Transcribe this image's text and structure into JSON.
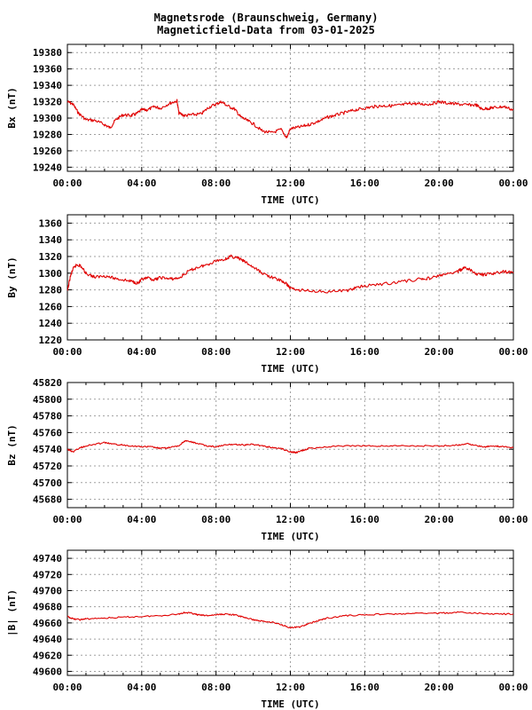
{
  "title": "Magnetsrode (Braunschweig, Germany)",
  "subtitle": "Magneticfield-Data from 03-01-2025",
  "colors": {
    "series": "#e00000",
    "grid": "#a0a0a0",
    "axis": "#000000"
  },
  "chart_data": [
    {
      "type": "line",
      "ylabel": "Bx (nT)",
      "xlabel": "TIME (UTC)",
      "x_ticks": [
        "00:00",
        "04:00",
        "08:00",
        "12:00",
        "16:00",
        "20:00",
        "00:00"
      ],
      "xlim": [
        0,
        24
      ],
      "ylim": [
        19235,
        19390
      ],
      "y_ticks": [
        19240,
        19260,
        19280,
        19300,
        19320,
        19340,
        19360,
        19380
      ],
      "grid": true,
      "series": [
        {
          "x": [
            0,
            0.3,
            0.6,
            1.0,
            1.5,
            2.0,
            2.3,
            2.6,
            3.0,
            3.4,
            3.7,
            4.0,
            4.3,
            4.7,
            5.0,
            5.5,
            5.9,
            6.0,
            6.3,
            6.7,
            7.2,
            7.6,
            8.0,
            8.3,
            8.6,
            9.0,
            9.3,
            9.6,
            10.0,
            10.5,
            11.0,
            11.5,
            11.8,
            12.0,
            12.5,
            13.0,
            13.5,
            14.0,
            14.5,
            15.0,
            15.5,
            16.0,
            16.5,
            17.0,
            17.5,
            18.0,
            18.5,
            19.0,
            19.5,
            20.0,
            20.5,
            21.0,
            21.5,
            22.0,
            22.3,
            22.7,
            23.0,
            23.5,
            24.0
          ],
          "y": [
            19320,
            19317,
            19306,
            19298,
            19297,
            19292,
            19288,
            19298,
            19304,
            19303,
            19305,
            19310,
            19310,
            19314,
            19312,
            19318,
            19321,
            19306,
            19303,
            19304,
            19305,
            19313,
            19317,
            19320,
            19315,
            19311,
            19302,
            19298,
            19293,
            19284,
            19282,
            19286,
            19276,
            19287,
            19289,
            19292,
            19296,
            19301,
            19304,
            19307,
            19310,
            19312,
            19314,
            19315,
            19315,
            19316,
            19318,
            19317,
            19317,
            19320,
            19318,
            19317,
            19316,
            19316,
            19311,
            19312,
            19313,
            19314,
            19310
          ]
        }
      ]
    },
    {
      "type": "line",
      "ylabel": "By (nT)",
      "xlabel": "TIME (UTC)",
      "x_ticks": [
        "00:00",
        "04:00",
        "08:00",
        "12:00",
        "16:00",
        "20:00",
        "00:00"
      ],
      "xlim": [
        0,
        24
      ],
      "ylim": [
        1220,
        1370
      ],
      "y_ticks": [
        1220,
        1240,
        1260,
        1280,
        1300,
        1320,
        1340,
        1360
      ],
      "grid": true,
      "series": [
        {
          "x": [
            0,
            0.15,
            0.3,
            0.5,
            0.7,
            1.0,
            1.5,
            2.0,
            2.5,
            3.0,
            3.5,
            3.8,
            4.0,
            4.3,
            4.7,
            5.0,
            5.5,
            6.0,
            6.5,
            7.0,
            7.5,
            8.0,
            8.5,
            8.8,
            9.2,
            9.6,
            10.0,
            10.5,
            11.0,
            11.5,
            11.8,
            12.0,
            12.5,
            13.0,
            14.0,
            15.0,
            15.5,
            16.0,
            17.0,
            18.0,
            19.0,
            19.5,
            20.0,
            20.5,
            21.0,
            21.3,
            21.6,
            22.0,
            22.5,
            23.0,
            23.5,
            24.0
          ],
          "y": [
            1278,
            1295,
            1305,
            1310,
            1309,
            1300,
            1295,
            1297,
            1294,
            1292,
            1290,
            1288,
            1292,
            1294,
            1292,
            1295,
            1293,
            1294,
            1302,
            1307,
            1310,
            1315,
            1317,
            1320,
            1318,
            1313,
            1307,
            1300,
            1295,
            1291,
            1287,
            1282,
            1280,
            1279,
            1278,
            1279,
            1282,
            1285,
            1287,
            1290,
            1293,
            1294,
            1297,
            1299,
            1302,
            1306,
            1305,
            1299,
            1298,
            1300,
            1302,
            1300
          ]
        }
      ]
    },
    {
      "type": "line",
      "ylabel": "Bz (nT)",
      "xlabel": "TIME (UTC)",
      "x_ticks": [
        "00:00",
        "04:00",
        "08:00",
        "12:00",
        "16:00",
        "20:00",
        "00:00"
      ],
      "xlim": [
        0,
        24
      ],
      "ylim": [
        45670,
        45820
      ],
      "y_ticks": [
        45680,
        45700,
        45720,
        45740,
        45760,
        45780,
        45800,
        45820
      ],
      "grid": true,
      "series": [
        {
          "x": [
            0,
            0.3,
            0.7,
            1.0,
            1.5,
            2.0,
            2.5,
            3.0,
            3.5,
            4.0,
            4.5,
            5.0,
            5.5,
            6.0,
            6.3,
            6.6,
            7.0,
            7.5,
            8.0,
            8.5,
            9.0,
            9.5,
            10.0,
            10.5,
            11.0,
            11.5,
            12.0,
            12.3,
            12.7,
            13.0,
            14.0,
            15.0,
            16.0,
            17.0,
            18.0,
            19.0,
            20.0,
            21.0,
            21.5,
            22.0,
            22.5,
            23.0,
            23.5,
            24.0
          ],
          "y": [
            45740,
            45737,
            45742,
            45744,
            45746,
            45748,
            45746,
            45745,
            45744,
            45743,
            45743,
            45741,
            45742,
            45744,
            45750,
            45749,
            45747,
            45744,
            45743,
            45745,
            45746,
            45745,
            45746,
            45744,
            45742,
            45741,
            45737,
            45736,
            45739,
            45741,
            45743,
            45744,
            45744,
            45744,
            45744,
            45744,
            45744,
            45745,
            45747,
            45744,
            45743,
            45744,
            45743,
            45742
          ]
        }
      ]
    },
    {
      "type": "line",
      "ylabel": "|B| (nT)",
      "xlabel": "TIME (UTC)",
      "x_ticks": [
        "00:00",
        "04:00",
        "08:00",
        "12:00",
        "16:00",
        "20:00",
        "00:00"
      ],
      "xlim": [
        0,
        24
      ],
      "ylim": [
        49595,
        49750
      ],
      "y_ticks": [
        49600,
        49620,
        49640,
        49660,
        49680,
        49700,
        49720,
        49740
      ],
      "grid": true,
      "series": [
        {
          "x": [
            0,
            0.3,
            0.7,
            1.0,
            2.0,
            3.0,
            4.0,
            5.0,
            6.0,
            6.3,
            6.7,
            7.0,
            7.5,
            8.0,
            8.5,
            9.0,
            9.5,
            10.0,
            10.5,
            11.0,
            11.5,
            12.0,
            12.5,
            13.0,
            13.5,
            14.0,
            15.0,
            16.0,
            17.0,
            18.0,
            19.0,
            20.0,
            21.0,
            22.0,
            23.0,
            24.0
          ],
          "y": [
            49668,
            49665,
            49664,
            49665,
            49666,
            49667,
            49668,
            49669,
            49671,
            49673,
            49672,
            49670,
            49669,
            49670,
            49671,
            49670,
            49667,
            49664,
            49662,
            49661,
            49658,
            49654,
            49655,
            49659,
            49663,
            49666,
            49669,
            49670,
            49671,
            49671,
            49672,
            49672,
            49673,
            49672,
            49671,
            49671
          ]
        }
      ]
    }
  ]
}
